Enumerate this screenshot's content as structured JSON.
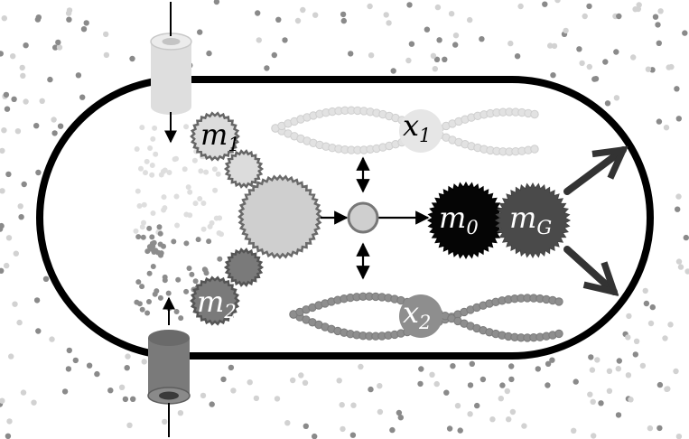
{
  "labels": {
    "m1": {
      "main": "m",
      "sub": "1"
    },
    "m2": {
      "main": "m",
      "sub": "2"
    },
    "m0": {
      "main": "m",
      "sub": "0"
    },
    "mG": {
      "main": "m",
      "sub": "G"
    },
    "x1": {
      "main": "x",
      "sub": "1"
    },
    "x2": {
      "main": "x",
      "sub": "2"
    }
  },
  "colors": {
    "membrane": "#000000",
    "species_light": "#dcdcdc",
    "species_dark": "#7a7a7a",
    "dna_light": "#e2e2e2",
    "dna_dark": "#8e8e8e",
    "m0_fill": "#050505",
    "mG_fill": "#4a4a4a",
    "enzyme_fill": "#cfcfcf",
    "arrow": "#333333"
  }
}
